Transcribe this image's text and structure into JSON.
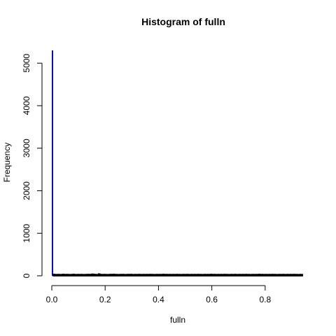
{
  "chart_data": {
    "type": "bar",
    "title": "Histogram of fulln",
    "xlabel": "fulln",
    "ylabel": "Frequency",
    "xlim": [
      0,
      0.95
    ],
    "ylim": [
      0,
      5300
    ],
    "x_ticks": [
      0.0,
      0.2,
      0.4,
      0.6,
      0.8
    ],
    "x_tick_labels": [
      "0.0",
      "0.2",
      "0.4",
      "0.6",
      "0.8"
    ],
    "y_ticks": [
      0,
      1000,
      2000,
      3000,
      4000,
      5000
    ],
    "y_tick_labels": [
      "0",
      "1000",
      "2000",
      "3000",
      "4000",
      "5000"
    ],
    "bin_width": 0.005,
    "bin_start": 0,
    "values": [
      5300,
      35,
      30,
      30,
      30,
      32,
      28,
      30,
      35,
      31,
      30,
      32,
      30,
      30,
      28,
      32,
      35,
      30,
      28,
      32,
      30,
      30,
      32,
      28,
      30,
      30,
      32,
      33,
      30,
      32,
      40,
      35,
      32,
      30,
      28,
      45,
      32,
      30,
      30,
      32,
      30,
      30,
      28,
      32,
      33,
      30,
      35,
      30,
      31,
      30,
      28,
      32,
      30,
      32,
      30,
      28,
      31,
      32,
      30,
      33,
      30,
      28,
      32,
      30,
      30,
      32,
      31,
      28,
      32,
      30,
      30,
      32,
      28,
      33,
      30,
      31,
      30,
      28,
      32,
      30,
      30,
      32,
      28,
      35,
      30,
      31,
      32,
      28,
      32,
      30,
      30,
      32,
      28,
      33,
      30,
      31,
      30,
      28,
      32,
      30,
      30,
      32,
      31,
      28,
      32,
      30,
      30,
      32,
      28,
      33,
      30,
      31,
      30,
      28,
      32,
      30,
      30,
      32,
      28,
      35,
      30,
      31,
      32,
      28,
      32,
      30,
      30,
      32,
      28,
      33,
      30,
      31,
      30,
      28,
      32,
      30,
      30,
      32,
      31,
      28,
      32,
      30,
      30,
      32,
      28,
      33,
      30,
      31,
      30,
      28,
      32,
      30,
      30,
      32,
      28,
      35,
      30,
      31,
      32,
      28,
      32,
      30,
      30,
      32,
      28,
      33,
      30,
      31,
      30,
      28,
      32,
      30,
      30,
      32,
      31,
      28,
      32,
      30,
      30,
      32,
      28,
      33,
      30,
      31,
      30,
      28,
      32,
      30
    ],
    "bar_fill": "#0000cc",
    "bar_border": "#000000",
    "grid": false,
    "legend": "none"
  }
}
